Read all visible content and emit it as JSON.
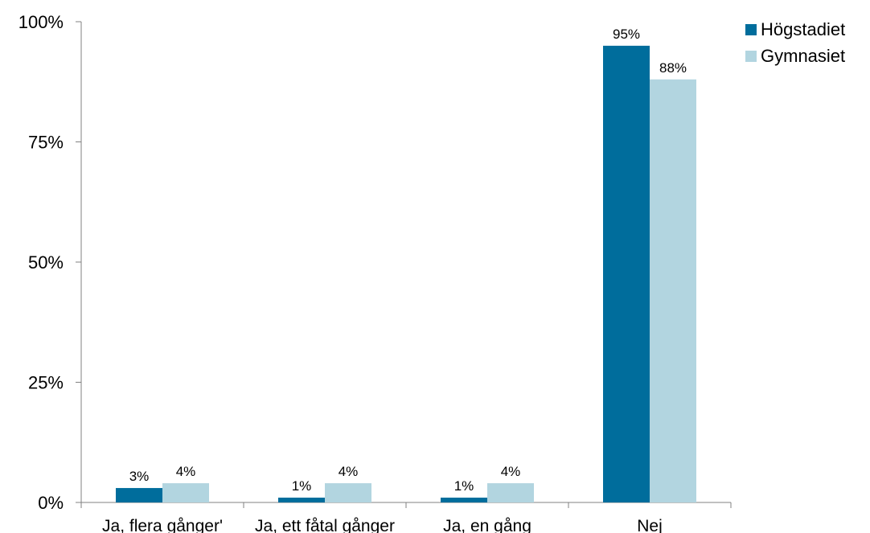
{
  "chart_data": {
    "type": "bar",
    "categories": [
      "Ja, flera gånger'",
      "Ja, ett fåtal gånger",
      "Ja, en gång",
      "Nej"
    ],
    "series": [
      {
        "name": "Högstadiet",
        "color": "#006d9c",
        "values": [
          3,
          1,
          1,
          95
        ],
        "labels": [
          "3%",
          "1%",
          "1%",
          "95%"
        ]
      },
      {
        "name": "Gymnasiet",
        "color": "#b2d5e0",
        "values": [
          4,
          4,
          4,
          88
        ],
        "labels": [
          "4%",
          "4%",
          "4%",
          "88%"
        ]
      }
    ],
    "ylim": [
      0,
      100
    ],
    "yticks": [
      0,
      25,
      50,
      75,
      100
    ],
    "ytick_labels": [
      "0%",
      "25%",
      "50%",
      "75%",
      "100%"
    ],
    "legend_position": "top-right",
    "grid": false
  }
}
